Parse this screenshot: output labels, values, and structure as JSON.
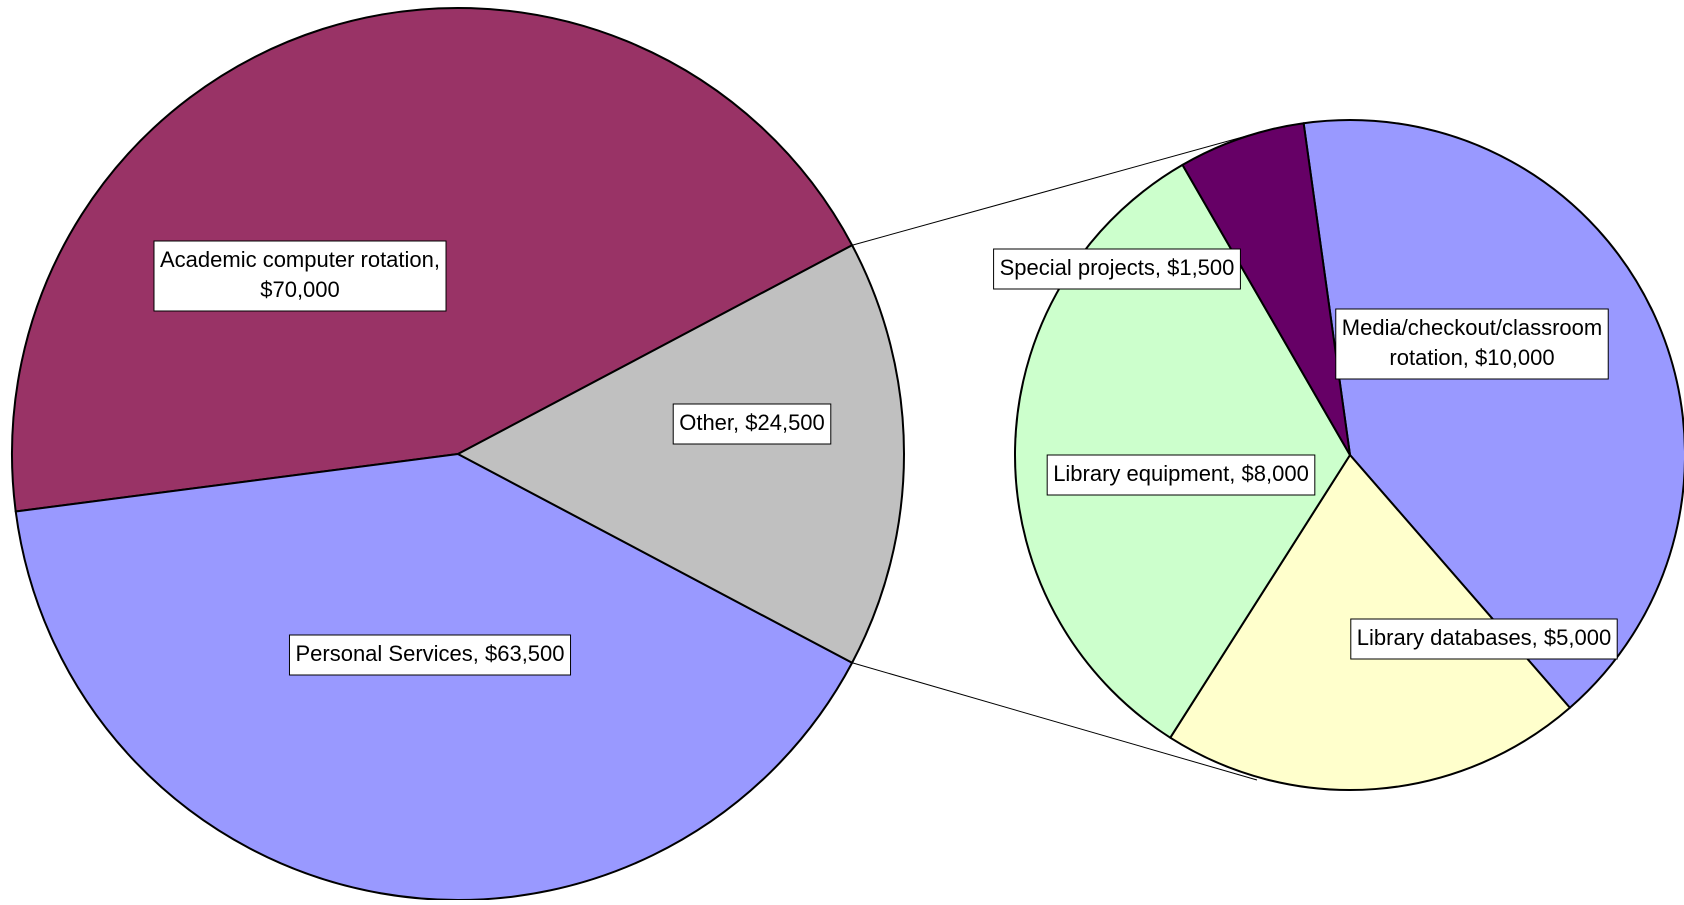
{
  "chart_data": {
    "type": "pie",
    "variant": "pie-of-pie",
    "main_pie": {
      "slices": [
        {
          "label": "Academic computer rotation,",
          "label_line2": "$70,000",
          "value": 70000,
          "color": "#993366"
        },
        {
          "label": "Personal Services,  $63,500",
          "label_line2": "",
          "value": 63500,
          "color": "#9999ff"
        },
        {
          "label": "Other,  $24,500",
          "label_line2": "",
          "value": 24500,
          "color": "#c0c0c0"
        }
      ]
    },
    "secondary_pie": {
      "slices": [
        {
          "label": "Media/checkout/classroom",
          "label_line2": "rotation,  $10,000",
          "value": 10000,
          "color": "#9999ff"
        },
        {
          "label": "Library databases,  $5,000",
          "label_line2": "",
          "value": 5000,
          "color": "#ffffcc"
        },
        {
          "label": "Library equipment,  $8,000",
          "label_line2": "",
          "value": 8000,
          "color": "#ccffcc"
        },
        {
          "label": "Special projects,  $1,500",
          "label_line2": "",
          "value": 1500,
          "color": "#660066"
        }
      ]
    },
    "legend": "none"
  }
}
